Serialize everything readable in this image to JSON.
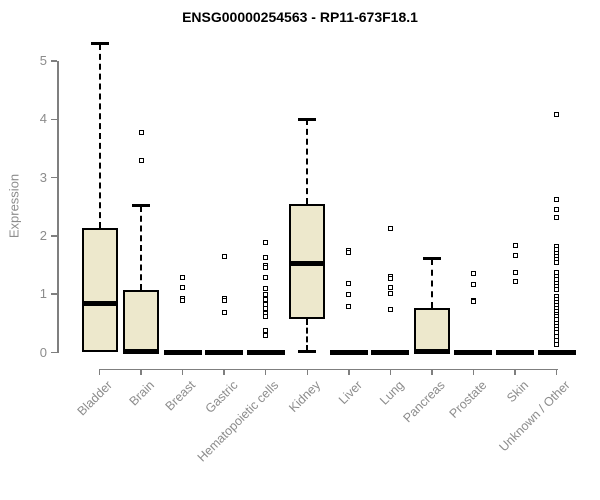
{
  "chart_data": {
    "type": "boxplot",
    "title": "ENSG00000254563 - RP11-673F18.1",
    "ylabel": "Expression",
    "xlabel": "",
    "ylim": [
      0,
      5
    ],
    "yticks": [
      0,
      1,
      2,
      3,
      4,
      5
    ],
    "grid": false,
    "legend": null,
    "colors": {
      "box_fill": "#EDE8CC",
      "box_stroke": "#000000",
      "axis": "#7f7f7f",
      "tick_text": "#8c8c8c",
      "title_text": "#000000",
      "background": "#ffffff"
    },
    "categories": [
      "Bladder",
      "Brain",
      "Breast",
      "Gastric",
      "Hematopoietic cells",
      "Kidney",
      "Liver",
      "Lung",
      "Pancreas",
      "Prostate",
      "Skin",
      "Unknown / Other"
    ],
    "series": [
      {
        "category": "Bladder",
        "min": 0,
        "q1": 0,
        "median": 0.84,
        "q3": 2.13,
        "max": 5.3,
        "outliers": []
      },
      {
        "category": "Brain",
        "min": 0,
        "q1": 0,
        "median": 0.02,
        "q3": 1.07,
        "max": 2.52,
        "outliers": [
          3.78,
          3.3
        ]
      },
      {
        "category": "Breast",
        "min": 0,
        "q1": 0,
        "median": 0,
        "q3": 0,
        "max": 0,
        "outliers": [
          1.29,
          1.11,
          0.93,
          0.9
        ]
      },
      {
        "category": "Gastric",
        "min": 0,
        "q1": 0,
        "median": 0,
        "q3": 0,
        "max": 0,
        "outliers": [
          1.65,
          0.93,
          0.9,
          0.68
        ]
      },
      {
        "category": "Hematopoietic cells",
        "min": 0,
        "q1": 0,
        "median": 0,
        "q3": 0,
        "max": 0,
        "outliers": [
          1.88,
          1.63,
          1.49,
          1.45,
          1.28,
          1.1,
          1.0,
          0.91,
          0.83,
          0.76,
          0.67,
          0.61,
          0.37,
          0.3
        ]
      },
      {
        "category": "Kidney",
        "min": 0.02,
        "q1": 0.57,
        "median": 1.53,
        "q3": 2.55,
        "max": 4.0,
        "outliers": []
      },
      {
        "category": "Liver",
        "min": 0,
        "q1": 0,
        "median": 0,
        "q3": 0,
        "max": 0,
        "outliers": [
          1.75,
          1.72,
          1.18,
          1.0,
          0.79
        ]
      },
      {
        "category": "Lung",
        "min": 0,
        "q1": 0,
        "median": 0,
        "q3": 0,
        "max": 0,
        "outliers": [
          2.12,
          1.3,
          1.27,
          1.12,
          1.02,
          0.73
        ]
      },
      {
        "category": "Pancreas",
        "min": 0,
        "q1": 0,
        "median": 0.02,
        "q3": 0.77,
        "max": 1.61,
        "outliers": []
      },
      {
        "category": "Prostate",
        "min": 0,
        "q1": 0,
        "median": 0,
        "q3": 0,
        "max": 0,
        "outliers": [
          1.36,
          1.16,
          0.9,
          0.87
        ]
      },
      {
        "category": "Skin",
        "min": 0,
        "q1": 0,
        "median": 0,
        "q3": 0,
        "max": 0,
        "outliers": [
          1.84,
          1.67,
          1.38,
          1.22
        ]
      },
      {
        "category": "Unknown / Other",
        "min": 0,
        "q1": 0,
        "median": 0,
        "q3": 0,
        "max": 0,
        "outliers": [
          4.09,
          2.62,
          2.45,
          2.31,
          1.81,
          1.76,
          1.7,
          1.65,
          1.6,
          1.55,
          1.38,
          1.3,
          1.25,
          1.19,
          1.13,
          1.08,
          0.96,
          0.91,
          0.86,
          0.81,
          0.76,
          0.71,
          0.66,
          0.61,
          0.56,
          0.5,
          0.45,
          0.4,
          0.34,
          0.28,
          0.21,
          0.13
        ]
      }
    ]
  }
}
